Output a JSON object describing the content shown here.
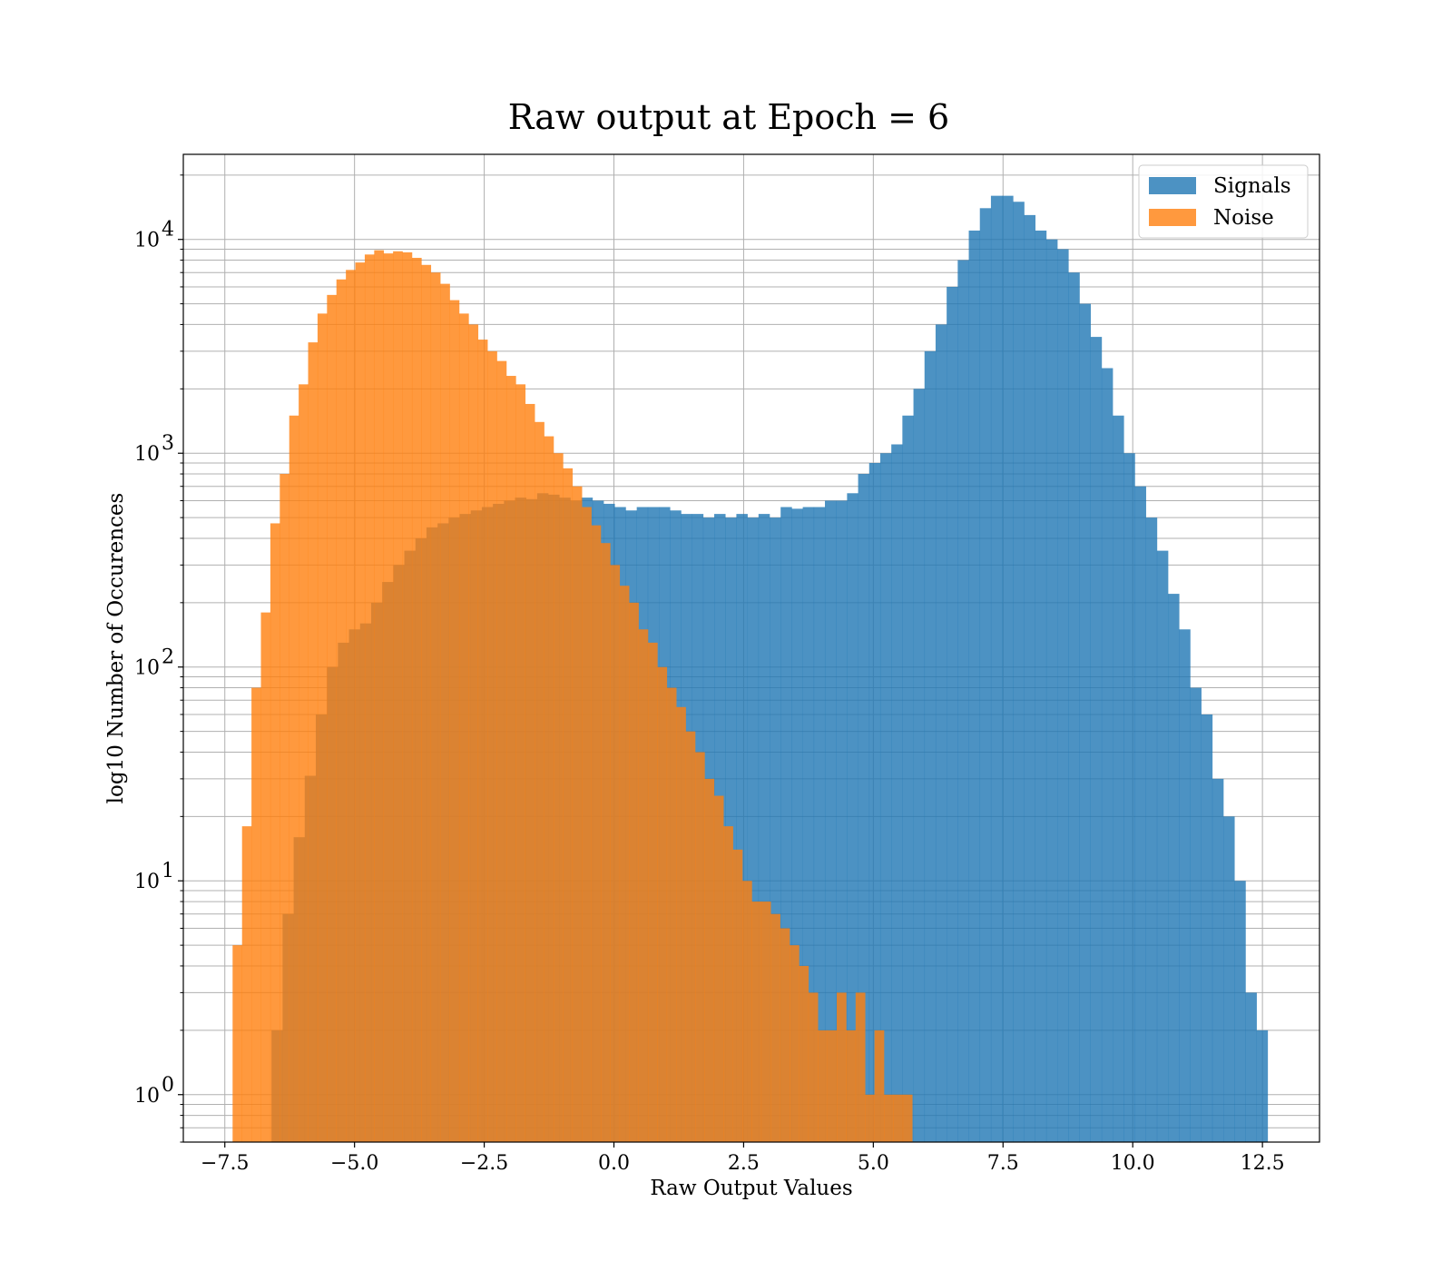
{
  "chart_data": {
    "type": "bar",
    "subtype": "histogram",
    "title": "Raw output at Epoch = 6",
    "xlabel": "Raw Output Values",
    "ylabel": "log10 Number of Occurences",
    "xlim": [
      -8.3,
      13.6
    ],
    "ylim": [
      0.6,
      25000
    ],
    "yscale": "log",
    "grid": true,
    "legend_position": "top-right",
    "x_ticks": [
      -7.5,
      -5.0,
      -2.5,
      0.0,
      2.5,
      5.0,
      7.5,
      10.0,
      12.5
    ],
    "x_tick_labels": [
      "−7.5",
      "−5.0",
      "−2.5",
      "0.0",
      "2.5",
      "5.0",
      "7.5",
      "10.0",
      "12.5"
    ],
    "y_ticks": [
      1,
      10,
      100,
      1000,
      10000
    ],
    "y_tick_bases": [
      "10",
      "10",
      "10",
      "10",
      "10"
    ],
    "y_tick_exponents": [
      "0",
      "1",
      "2",
      "3",
      "4"
    ],
    "series": [
      {
        "name": "Signals",
        "color": "#1f77b4",
        "opacity": 0.8,
        "bin_edges": [
          -6.6,
          12.6
        ],
        "values": [
          2,
          7,
          16,
          31,
          60,
          100,
          130,
          150,
          160,
          200,
          250,
          300,
          350,
          400,
          450,
          470,
          500,
          520,
          540,
          560,
          580,
          600,
          620,
          610,
          650,
          640,
          620,
          600,
          620,
          600,
          580,
          560,
          540,
          560,
          560,
          560,
          540,
          520,
          520,
          500,
          520,
          500,
          520,
          500,
          520,
          500,
          560,
          550,
          560,
          560,
          600,
          600,
          650,
          800,
          900,
          1000,
          1100,
          1500,
          2000,
          3000,
          4000,
          6000,
          8000,
          11000,
          14000,
          16000,
          16000,
          15000,
          13000,
          11000,
          10000,
          9000,
          7000,
          5000,
          3500,
          2500,
          1500,
          1000,
          700,
          500,
          350,
          220,
          150,
          80,
          60,
          30,
          20,
          10,
          3,
          2
        ]
      },
      {
        "name": "Noise",
        "color": "#ff7f0e",
        "opacity": 0.8,
        "bin_edges": [
          -7.35,
          5.75
        ],
        "values": [
          5,
          18,
          80,
          180,
          470,
          800,
          1500,
          2100,
          3300,
          4500,
          5500,
          6500,
          7200,
          7800,
          8500,
          8900,
          8600,
          8800,
          8700,
          8200,
          7600,
          7000,
          6200,
          5200,
          4500,
          4000,
          3400,
          3000,
          2700,
          2300,
          2100,
          1700,
          1400,
          1200,
          1000,
          850,
          700,
          560,
          460,
          380,
          300,
          240,
          200,
          150,
          130,
          100,
          80,
          65,
          50,
          40,
          30,
          25,
          18,
          14,
          10,
          8,
          8,
          7,
          6,
          5,
          4,
          3,
          2,
          2,
          3,
          2,
          3,
          1,
          2,
          1,
          1,
          1
        ]
      }
    ]
  }
}
